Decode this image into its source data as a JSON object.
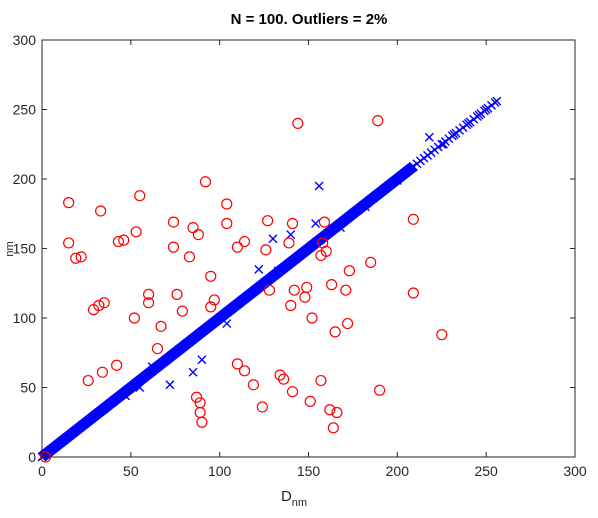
{
  "chart_data": {
    "type": "scatter",
    "title": "N = 100. Outliers =  2%",
    "xlabel": {
      "main": "D",
      "sub": "nm"
    },
    "ylabel": {
      "main": "",
      "sub": "nm"
    },
    "xlim": [
      0,
      300
    ],
    "ylim": [
      0,
      300
    ],
    "xticks": [
      0,
      50,
      100,
      150,
      200,
      250,
      300
    ],
    "yticks": [
      0,
      50,
      100,
      150,
      200,
      250,
      300
    ],
    "grid": false,
    "colors": {
      "cross": "#0000ff",
      "circle": "#ff0000",
      "axis": "#262626"
    },
    "diagonal_segments": [
      {
        "from": 0,
        "to": 209,
        "step": 0.5
      },
      {
        "from": 209,
        "to": 256,
        "step": 2
      }
    ],
    "series": [
      {
        "marker": "x",
        "color": "#0000ff",
        "points": [
          [
            156,
            195
          ],
          [
            218,
            230
          ],
          [
            154,
            168
          ],
          [
            130,
            157
          ],
          [
            140,
            160
          ],
          [
            122,
            135
          ],
          [
            133,
            134
          ],
          [
            104,
            96
          ],
          [
            90,
            70
          ],
          [
            85,
            61
          ],
          [
            72,
            52
          ],
          [
            62,
            65
          ],
          [
            55,
            50
          ],
          [
            47,
            44
          ],
          [
            40,
            40
          ],
          [
            35,
            35
          ],
          [
            168,
            165
          ],
          [
            182,
            180
          ],
          [
            200,
            199
          ],
          [
            226,
            225
          ],
          [
            232,
            232
          ],
          [
            240,
            240
          ],
          [
            246,
            246
          ],
          [
            250,
            250
          ],
          [
            256,
            256
          ]
        ]
      },
      {
        "marker": "o",
        "color": "#ff0000",
        "points": [
          [
            144,
            240
          ],
          [
            189,
            242
          ],
          [
            92,
            198
          ],
          [
            15,
            183
          ],
          [
            55,
            188
          ],
          [
            33,
            177
          ],
          [
            104,
            182
          ],
          [
            74,
            169
          ],
          [
            85,
            165
          ],
          [
            88,
            160
          ],
          [
            104,
            168
          ],
          [
            127,
            170
          ],
          [
            141,
            168
          ],
          [
            159,
            169
          ],
          [
            209,
            171
          ],
          [
            15,
            154
          ],
          [
            43,
            155
          ],
          [
            46,
            156
          ],
          [
            53,
            162
          ],
          [
            74,
            151
          ],
          [
            110,
            151
          ],
          [
            114,
            155
          ],
          [
            126,
            149
          ],
          [
            139,
            154
          ],
          [
            158,
            154
          ],
          [
            157,
            145
          ],
          [
            160,
            148
          ],
          [
            19,
            143
          ],
          [
            22,
            144
          ],
          [
            83,
            144
          ],
          [
            95,
            130
          ],
          [
            173,
            134
          ],
          [
            185,
            140
          ],
          [
            60,
            117
          ],
          [
            76,
            117
          ],
          [
            128,
            120
          ],
          [
            142,
            120
          ],
          [
            149,
            122
          ],
          [
            163,
            124
          ],
          [
            171,
            120
          ],
          [
            209,
            118
          ],
          [
            32,
            109
          ],
          [
            35,
            111
          ],
          [
            60,
            111
          ],
          [
            29,
            106
          ],
          [
            79,
            105
          ],
          [
            95,
            108
          ],
          [
            97,
            113
          ],
          [
            140,
            109
          ],
          [
            148,
            115
          ],
          [
            52,
            100
          ],
          [
            67,
            94
          ],
          [
            152,
            100
          ],
          [
            165,
            90
          ],
          [
            172,
            96
          ],
          [
            65,
            78
          ],
          [
            42,
            66
          ],
          [
            110,
            67
          ],
          [
            114,
            62
          ],
          [
            34,
            61
          ],
          [
            26,
            55
          ],
          [
            134,
            59
          ],
          [
            136,
            56
          ],
          [
            157,
            55
          ],
          [
            225,
            88
          ],
          [
            119,
            52
          ],
          [
            141,
            47
          ],
          [
            190,
            48
          ],
          [
            87,
            43
          ],
          [
            89,
            39
          ],
          [
            151,
            40
          ],
          [
            89,
            32
          ],
          [
            124,
            36
          ],
          [
            162,
            34
          ],
          [
            166,
            32
          ],
          [
            90,
            25
          ],
          [
            164,
            21
          ],
          [
            2,
            0
          ]
        ]
      }
    ]
  }
}
